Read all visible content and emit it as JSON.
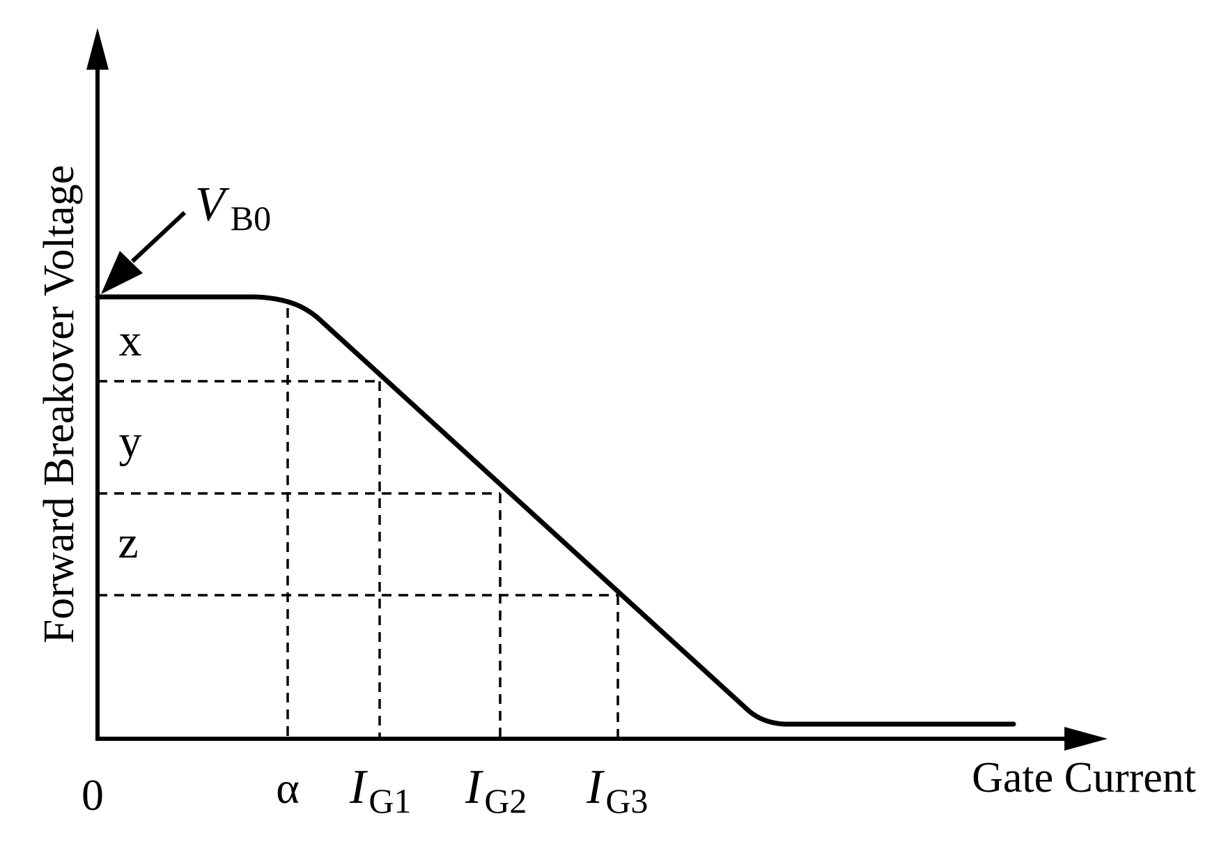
{
  "chart_data": {
    "type": "line",
    "ylabel": "Forward Breakover Voltage",
    "xlabel": "Gate Current",
    "origin_label": "0",
    "annotation": {
      "main": "V",
      "sub": "B0"
    },
    "x_ticks": [
      {
        "main": "α",
        "sub": ""
      },
      {
        "main": "I",
        "sub": "G1"
      },
      {
        "main": "I",
        "sub": "G2"
      },
      {
        "main": "I",
        "sub": "G3"
      }
    ],
    "region_labels": [
      "x",
      "y",
      "z"
    ],
    "colors": {
      "ink": "#000000",
      "background": "#ffffff"
    }
  }
}
